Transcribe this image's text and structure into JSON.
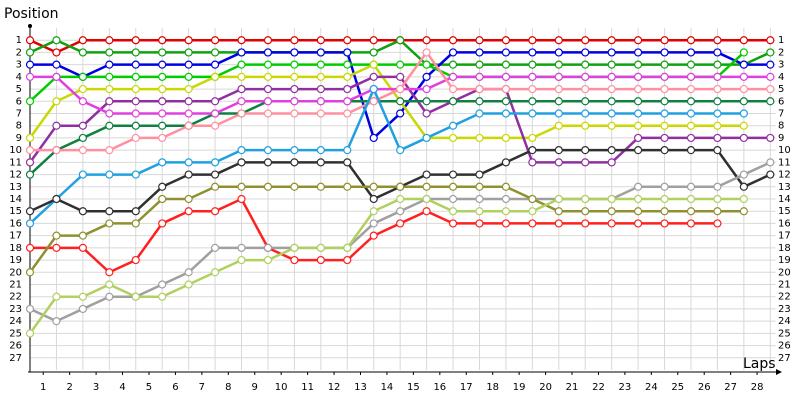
{
  "chart_data": {
    "type": "line",
    "y_label": "Position",
    "x_label": "Laps",
    "xlim": [
      0,
      28.2
    ],
    "ylim": [
      28,
      0
    ],
    "yticks": [
      1,
      2,
      3,
      4,
      5,
      6,
      7,
      8,
      9,
      10,
      11,
      12,
      13,
      14,
      15,
      16,
      17,
      18,
      19,
      20,
      21,
      22,
      23,
      24,
      25,
      26,
      27
    ],
    "xticks": [
      {
        "value": 0.5,
        "label": "1"
      },
      {
        "value": 1.5,
        "label": "2"
      },
      {
        "value": 2.5,
        "label": "3"
      },
      {
        "value": 3.5,
        "label": "4"
      },
      {
        "value": 4.5,
        "label": "5"
      },
      {
        "value": 5.5,
        "label": "6"
      },
      {
        "value": 6.5,
        "label": "7"
      },
      {
        "value": 7.5,
        "label": "8"
      },
      {
        "value": 8.5,
        "label": "9"
      },
      {
        "value": 9.5,
        "label": "10"
      },
      {
        "value": 10.5,
        "label": "11"
      },
      {
        "value": 11.5,
        "label": "12"
      },
      {
        "value": 12.5,
        "label": "13"
      },
      {
        "value": 13.5,
        "label": "14"
      },
      {
        "value": 14.5,
        "label": "15"
      },
      {
        "value": 15.5,
        "label": "16"
      },
      {
        "value": 16.5,
        "label": "17"
      },
      {
        "value": 17.5,
        "label": "18"
      },
      {
        "value": 18.5,
        "label": "19"
      },
      {
        "value": 19.5,
        "label": "20"
      },
      {
        "value": 20.5,
        "label": "21"
      },
      {
        "value": 21.5,
        "label": "22"
      },
      {
        "value": 22.5,
        "label": "23"
      },
      {
        "value": 23.5,
        "label": "24"
      },
      {
        "value": 24.5,
        "label": "25"
      },
      {
        "value": 25.5,
        "label": "26"
      },
      {
        "value": 26.5,
        "label": "27"
      },
      {
        "value": 27.5,
        "label": "28"
      }
    ],
    "grid": true,
    "x": [
      0,
      1,
      2,
      3,
      4,
      5,
      6,
      7,
      8,
      9,
      10,
      11,
      12,
      13,
      14,
      15,
      16,
      17,
      18,
      19,
      20,
      21,
      22,
      23,
      24,
      25,
      26,
      27,
      28
    ],
    "series": [
      {
        "color": "#e00000",
        "values": [
          1,
          2,
          1,
          1,
          1,
          1,
          1,
          1,
          1,
          1,
          1,
          1,
          1,
          1,
          1,
          1,
          1,
          1,
          1,
          1,
          1,
          1,
          1,
          1,
          1,
          1,
          1,
          1,
          1
        ]
      },
      {
        "color": "#10a010",
        "values": [
          2,
          1,
          2,
          2,
          2,
          2,
          2,
          2,
          2,
          2,
          2,
          2,
          2,
          2,
          1,
          3,
          3,
          3,
          3,
          3,
          3,
          3,
          3,
          3,
          3,
          3,
          3,
          3,
          2
        ]
      },
      {
        "color": "#0000e0",
        "values": [
          3,
          3,
          4,
          3,
          3,
          3,
          3,
          3,
          2,
          2,
          2,
          2,
          2,
          9,
          7,
          4,
          2,
          2,
          2,
          2,
          2,
          2,
          2,
          2,
          2,
          2,
          2,
          3,
          3
        ]
      },
      {
        "color": "#00cc00",
        "values": [
          6,
          4,
          4,
          4,
          4,
          4,
          4,
          4,
          3,
          3,
          3,
          3,
          3,
          3,
          3,
          3,
          4,
          4,
          4,
          4,
          4,
          4,
          4,
          4,
          4,
          4,
          4,
          2,
          null
        ]
      },
      {
        "color": "#c8d800",
        "values": [
          9,
          6,
          5,
          5,
          5,
          5,
          5,
          4,
          4,
          4,
          4,
          4,
          4,
          3,
          6,
          9,
          9,
          9,
          9,
          9,
          8,
          8,
          8,
          8,
          8,
          8,
          8,
          8,
          null
        ]
      },
      {
        "color": "#9030a0",
        "values": [
          11,
          8,
          8,
          6,
          6,
          6,
          6,
          6,
          5,
          5,
          5,
          5,
          5,
          4,
          4,
          7,
          6,
          5,
          5,
          11,
          11,
          11,
          11,
          9,
          9,
          9,
          9,
          9,
          9
        ]
      },
      {
        "color": "#108040",
        "values": [
          12,
          10,
          9,
          8,
          8,
          8,
          8,
          7,
          7,
          6,
          6,
          6,
          6,
          6,
          6,
          6,
          6,
          6,
          6,
          6,
          6,
          6,
          6,
          6,
          6,
          6,
          6,
          6,
          6
        ]
      },
      {
        "color": "#e040e0",
        "values": [
          4,
          4,
          6,
          7,
          7,
          7,
          7,
          7,
          6,
          6,
          6,
          6,
          6,
          5,
          5,
          5,
          4,
          4,
          4,
          4,
          4,
          4,
          4,
          4,
          4,
          4,
          4,
          4,
          4
        ]
      },
      {
        "color": "#ff90a0",
        "values": [
          10,
          10,
          10,
          10,
          9,
          9,
          8,
          8,
          7,
          7,
          7,
          7,
          7,
          6,
          5,
          2,
          5,
          5,
          5,
          5,
          5,
          5,
          5,
          5,
          5,
          5,
          5,
          5,
          5
        ]
      },
      {
        "color": "#20a0e0",
        "values": [
          16,
          14,
          12,
          12,
          12,
          11,
          11,
          11,
          10,
          10,
          10,
          10,
          10,
          5,
          10,
          9,
          8,
          7,
          7,
          7,
          7,
          7,
          7,
          7,
          7,
          7,
          7,
          7,
          null
        ]
      },
      {
        "color": "#303030",
        "values": [
          15,
          14,
          15,
          15,
          15,
          13,
          12,
          12,
          11,
          11,
          11,
          11,
          11,
          14,
          13,
          12,
          12,
          12,
          11,
          10,
          10,
          10,
          10,
          10,
          10,
          10,
          10,
          13,
          12
        ]
      },
      {
        "color": "#ff2020",
        "values": [
          18,
          18,
          18,
          20,
          19,
          16,
          15,
          15,
          14,
          18,
          19,
          19,
          19,
          17,
          16,
          15,
          16,
          16,
          16,
          16,
          16,
          16,
          16,
          16,
          16,
          16,
          16,
          null,
          null
        ]
      },
      {
        "color": "#a0a0a0",
        "values": [
          23,
          24,
          23,
          22,
          22,
          21,
          20,
          18,
          18,
          18,
          18,
          18,
          18,
          16,
          15,
          14,
          14,
          14,
          14,
          14,
          14,
          14,
          14,
          13,
          13,
          13,
          13,
          12,
          11
        ]
      },
      {
        "color": "#909030",
        "values": [
          20,
          17,
          17,
          16,
          16,
          14,
          14,
          13,
          13,
          13,
          13,
          13,
          13,
          13,
          13,
          13,
          13,
          13,
          13,
          14,
          15,
          15,
          15,
          15,
          15,
          15,
          15,
          15,
          null
        ]
      },
      {
        "color": "#b0d060",
        "values": [
          25,
          22,
          22,
          21,
          22,
          22,
          21,
          20,
          19,
          19,
          18,
          18,
          18,
          15,
          14,
          14,
          15,
          15,
          15,
          15,
          14,
          14,
          14,
          14,
          14,
          14,
          14,
          14,
          null
        ]
      }
    ]
  }
}
